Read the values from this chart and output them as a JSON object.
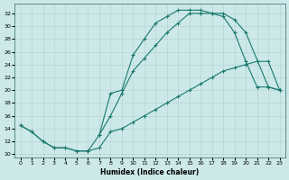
{
  "xlabel": "Humidex (Indice chaleur)",
  "line_color": "#1a7a6e",
  "bg_color": "#cce8e8",
  "grid_color": "#b8d4d4",
  "xlim": [
    0,
    23
  ],
  "ylim": [
    10,
    33
  ],
  "xticks": [
    0,
    1,
    2,
    3,
    4,
    5,
    6,
    7,
    8,
    9,
    10,
    11,
    12,
    13,
    14,
    15,
    16,
    17,
    18,
    19,
    20,
    21,
    22,
    23
  ],
  "yticks": [
    10,
    12,
    14,
    16,
    18,
    20,
    22,
    24,
    26,
    28,
    30,
    32
  ],
  "curve1_x": [
    0,
    1,
    2,
    3,
    4,
    5,
    6,
    7,
    8,
    9,
    10,
    11,
    12,
    13,
    14,
    15,
    16,
    17,
    18,
    19,
    20,
    22,
    23
  ],
  "curve1_y": [
    14.5,
    13.5,
    12.0,
    11.0,
    11.0,
    10.5,
    10.5,
    13.0,
    19.5,
    20.0,
    25.5,
    28.0,
    30.5,
    31.5,
    32.5,
    32.5,
    32.5,
    32.0,
    32.0,
    31.0,
    29.0,
    20.5,
    20.0
  ],
  "curve2_x": [
    7,
    8,
    9,
    10,
    11,
    12,
    13,
    14,
    15,
    16,
    17,
    18,
    19,
    20,
    21,
    22,
    23
  ],
  "curve2_y": [
    13.0,
    16.0,
    19.5,
    23.0,
    25.0,
    27.0,
    29.0,
    30.5,
    32.0,
    32.0,
    32.0,
    31.5,
    29.0,
    24.5,
    20.5,
    20.5,
    20.0
  ],
  "curve3_x": [
    0,
    1,
    2,
    3,
    4,
    5,
    6,
    7,
    8,
    9,
    10,
    11,
    12,
    13,
    14,
    15,
    16,
    17,
    18,
    19,
    20,
    21,
    22,
    23
  ],
  "curve3_y": [
    14.5,
    13.5,
    12.0,
    11.0,
    11.0,
    10.5,
    10.5,
    11.0,
    13.5,
    14.0,
    15.0,
    16.0,
    17.0,
    18.0,
    19.0,
    20.0,
    21.0,
    22.0,
    23.0,
    23.5,
    24.0,
    24.5,
    24.5,
    20.0
  ]
}
